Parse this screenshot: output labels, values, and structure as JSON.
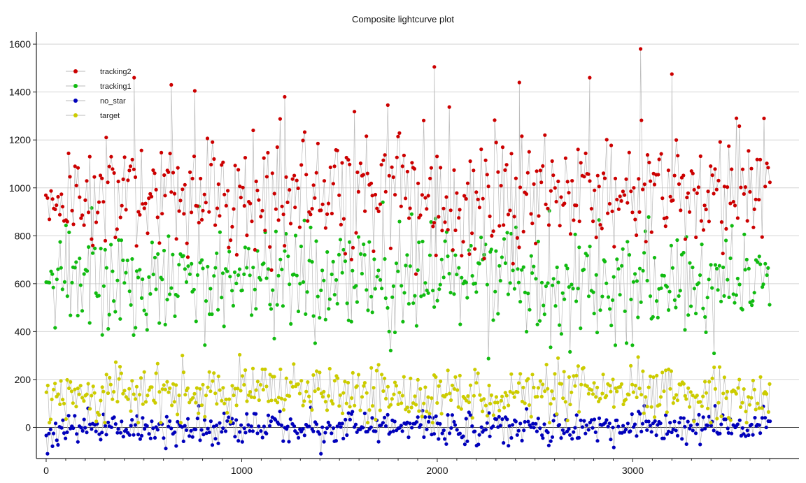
{
  "chart_data": {
    "type": "scatter",
    "title": "Composite lightcurve plot",
    "xlabel": "",
    "ylabel": "",
    "xlim": [
      -50,
      3850
    ],
    "ylim": [
      -130,
      1650
    ],
    "x_ticks": [
      0,
      1000,
      2000,
      3000
    ],
    "y_ticks": [
      0,
      200,
      400,
      600,
      800,
      1000,
      1200,
      1400,
      1600
    ],
    "grid": {
      "horizontal": true,
      "vertical": false
    },
    "legend_position": "top-left",
    "connecting_line_color": "#bbbbbb",
    "x_range": [
      0,
      3700
    ],
    "point_count_per_series": 480,
    "series": [
      {
        "name": "tracking2",
        "color": "#cc0000",
        "mean": 980,
        "std": 130,
        "min": 640,
        "max": 1580,
        "highlights": [
          [
            3040,
            1580
          ],
          [
            1985,
            1505
          ],
          [
            3200,
            1475
          ],
          [
            450,
            1460
          ],
          [
            2420,
            1440
          ],
          [
            2780,
            1460
          ],
          [
            1220,
            1380
          ],
          [
            640,
            1430
          ],
          [
            760,
            1405
          ]
        ]
      },
      {
        "name": "tracking1",
        "color": "#11bb11",
        "mean": 620,
        "std": 110,
        "min": 280,
        "max": 940
      },
      {
        "name": "no_star",
        "color": "#0000bb",
        "mean": 0,
        "std": 35,
        "min": -110,
        "max": 90
      },
      {
        "name": "target",
        "color": "#cccc00",
        "mean": 140,
        "std": 55,
        "min": 20,
        "max": 330
      }
    ]
  }
}
